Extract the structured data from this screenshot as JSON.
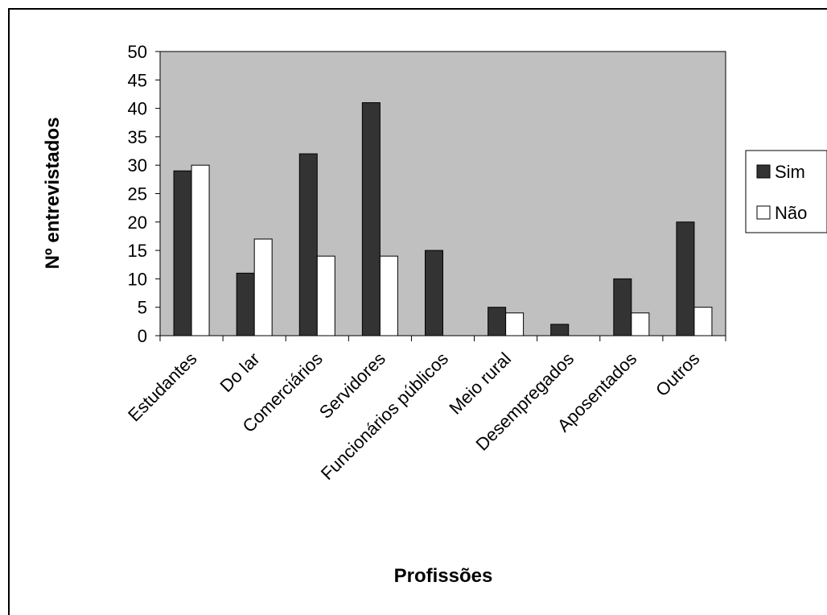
{
  "chart_data": {
    "type": "bar",
    "xlabel": "Profissões",
    "ylabel": "Nº entrevistados",
    "ylim": [
      0,
      50
    ],
    "yticks": [
      0,
      5,
      10,
      15,
      20,
      25,
      30,
      35,
      40,
      45,
      50
    ],
    "categories": [
      "Estudantes",
      "Do lar",
      "Comerciários",
      "Servidores",
      "Funcionários públicos",
      "Meio rural",
      "Desempregados",
      "Aposentados",
      "Outros"
    ],
    "series": [
      {
        "name": "Sim",
        "color": "#333333",
        "values": [
          29,
          11,
          32,
          41,
          15,
          5,
          2,
          10,
          20
        ]
      },
      {
        "name": "Não",
        "color": "#ffffff",
        "values": [
          30,
          17,
          14,
          14,
          0,
          4,
          0,
          4,
          5
        ]
      }
    ],
    "plot_background": "#c0c0c0",
    "grid": false,
    "legend_position": "right"
  }
}
